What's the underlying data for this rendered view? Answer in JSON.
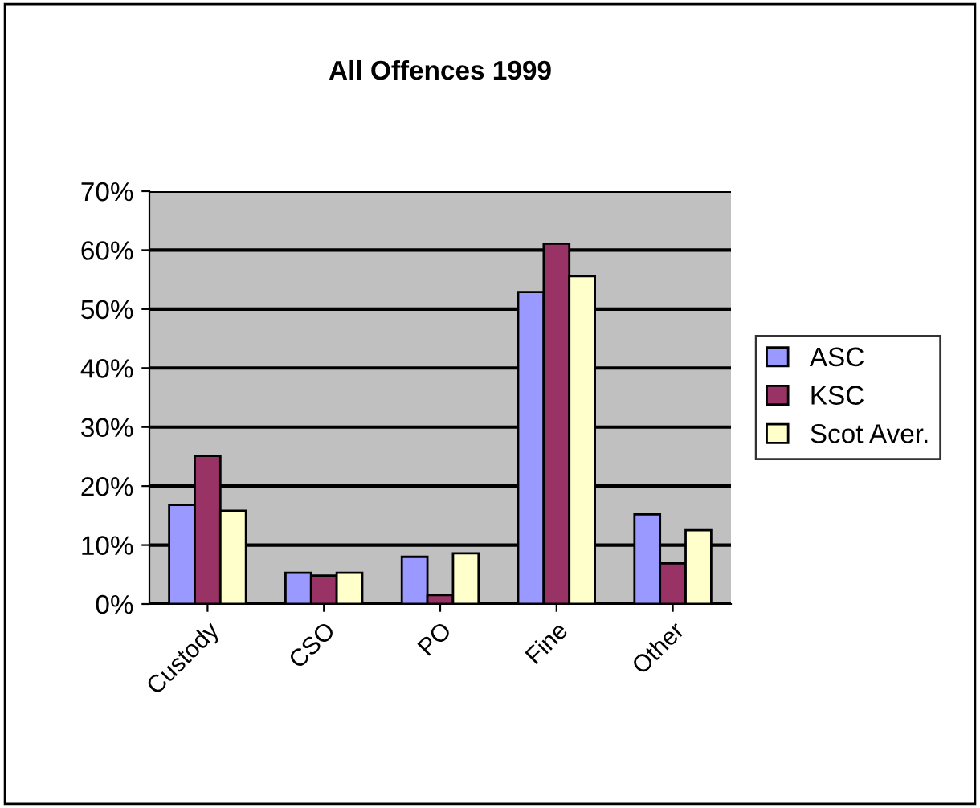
{
  "chart_data": {
    "type": "bar",
    "title": "All Offences 1999",
    "categories": [
      "Custody",
      "CSO",
      "PO",
      "Fine",
      "Other"
    ],
    "series": [
      {
        "name": "ASC",
        "color": "#9999ff",
        "values": [
          16.8,
          5.3,
          8.0,
          52.9,
          15.2
        ]
      },
      {
        "name": "KSC",
        "color": "#993366",
        "values": [
          25.1,
          4.8,
          1.5,
          61.1,
          6.9
        ]
      },
      {
        "name": "Scot Aver.",
        "color": "#ffffcc",
        "values": [
          15.8,
          5.3,
          8.6,
          55.6,
          12.5
        ]
      }
    ],
    "ylim": [
      0,
      70
    ],
    "yticks": [
      {
        "value": 0,
        "label": "0%"
      },
      {
        "value": 10,
        "label": "10%"
      },
      {
        "value": 20,
        "label": "20%"
      },
      {
        "value": 30,
        "label": "30%"
      },
      {
        "value": 40,
        "label": "40%"
      },
      {
        "value": 50,
        "label": "50%"
      },
      {
        "value": 60,
        "label": "60%"
      },
      {
        "value": 70,
        "label": "70%"
      }
    ],
    "grid": "y",
    "legend": "right"
  }
}
